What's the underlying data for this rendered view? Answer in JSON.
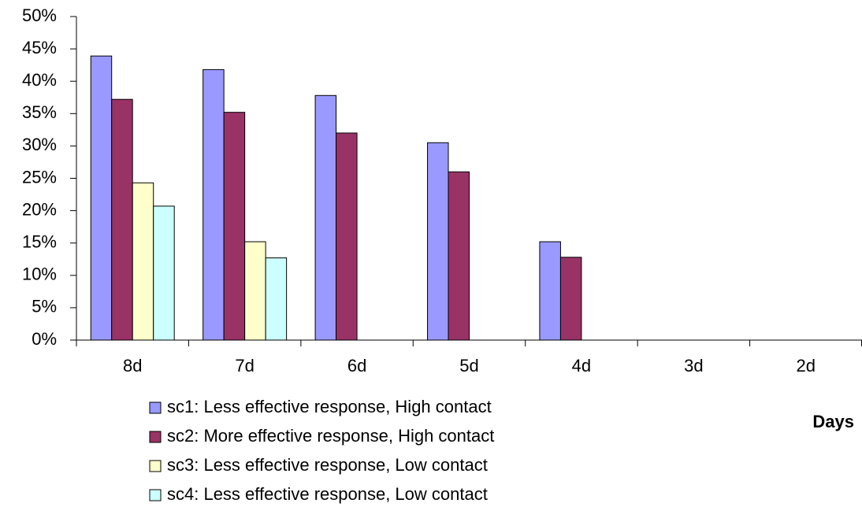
{
  "chart_data": {
    "type": "bar",
    "x_label": "Days",
    "categories": [
      "8d",
      "7d",
      "6d",
      "5d",
      "4d",
      "3d",
      "2d"
    ],
    "series": [
      {
        "name": "sc1: Less effective response, High contact",
        "color": "#9999FF",
        "values": [
          43.9,
          41.8,
          37.8,
          30.5,
          15.2,
          0,
          0
        ]
      },
      {
        "name": "sc2: More effective response, High contact",
        "color": "#993366",
        "values": [
          37.2,
          35.2,
          32,
          26,
          12.8,
          0,
          0
        ]
      },
      {
        "name": "sc3: Less effective response, Low contact",
        "color": "#FFFFCC",
        "values": [
          24.3,
          15.2,
          0,
          0,
          0,
          0,
          0
        ]
      },
      {
        "name": "sc4: Less effective response, Low contact",
        "color": "#CCFFFF",
        "values": [
          20.7,
          12.7,
          0,
          0,
          0,
          0,
          0
        ]
      }
    ],
    "ylim": [
      0,
      50
    ],
    "yticks": [
      {
        "value": 0,
        "label": "0%"
      },
      {
        "value": 5,
        "label": "5%"
      },
      {
        "value": 10,
        "label": "10%"
      },
      {
        "value": 15,
        "label": "15%"
      },
      {
        "value": 20,
        "label": "20%"
      },
      {
        "value": 25,
        "label": "25%"
      },
      {
        "value": 30,
        "label": "30%"
      },
      {
        "value": 35,
        "label": "35%"
      },
      {
        "value": 40,
        "label": "40%"
      },
      {
        "value": 45,
        "label": "45%"
      },
      {
        "value": 50,
        "label": "50%"
      }
    ],
    "grid": false,
    "legend": "bottom"
  }
}
